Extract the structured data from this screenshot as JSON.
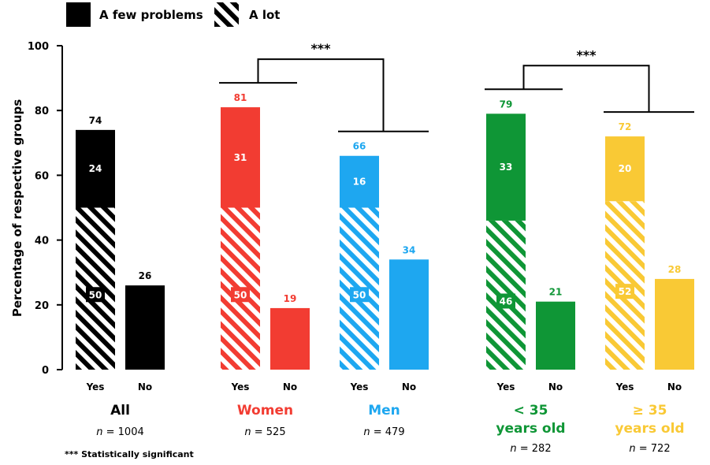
{
  "legend": {
    "solid_label": "A few problems",
    "hatched_label": "A lot"
  },
  "footnote": "*** Statistically significant",
  "significance_marker": "***",
  "chart_data": {
    "type": "bar",
    "stacked": true,
    "ylabel": "Percentage of respective groups",
    "ylim": [
      0,
      100
    ],
    "yticks": [
      0,
      20,
      40,
      60,
      80,
      100
    ],
    "grid": false,
    "legend_position": "top-left",
    "series_names": [
      "A lot",
      "A few problems"
    ],
    "groups": [
      {
        "name": "All",
        "n_prefix": "n",
        "n_value": "= 1004",
        "color": "#000000",
        "bars": [
          {
            "category": "Yes",
            "total": 74,
            "a_lot": 50,
            "a_few": 24
          },
          {
            "category": "No",
            "total": 26
          }
        ]
      },
      {
        "name": "Women",
        "n_prefix": "n",
        "n_value": "= 525",
        "color": "#f23c32",
        "bars": [
          {
            "category": "Yes",
            "total": 81,
            "a_lot": 50,
            "a_few": 31
          },
          {
            "category": "No",
            "total": 19
          }
        ]
      },
      {
        "name": "Men",
        "n_prefix": "n",
        "n_value": "= 479",
        "color": "#1ea7f0",
        "bars": [
          {
            "category": "Yes",
            "total": 66,
            "a_lot": 50,
            "a_few": 16
          },
          {
            "category": "No",
            "total": 34
          }
        ]
      },
      {
        "name": "< 35",
        "name_line2": "years old",
        "n_prefix": "n",
        "n_value": "= 282",
        "color": "#0f9636",
        "bars": [
          {
            "category": "Yes",
            "total": 79,
            "a_lot": 46,
            "a_few": 33
          },
          {
            "category": "No",
            "total": 21
          }
        ]
      },
      {
        "name": "≥ 35",
        "name_line2": "years old",
        "n_prefix": "n",
        "n_value": "= 722",
        "color": "#f9c935",
        "bars": [
          {
            "category": "Yes",
            "total": 72,
            "a_lot": 52,
            "a_few": 20
          },
          {
            "category": "No",
            "total": 28
          }
        ]
      }
    ],
    "significance": [
      {
        "between": [
          "Women",
          "Men"
        ],
        "label": "***"
      },
      {
        "between": [
          "< 35",
          "≥ 35"
        ],
        "label": "***"
      }
    ]
  }
}
